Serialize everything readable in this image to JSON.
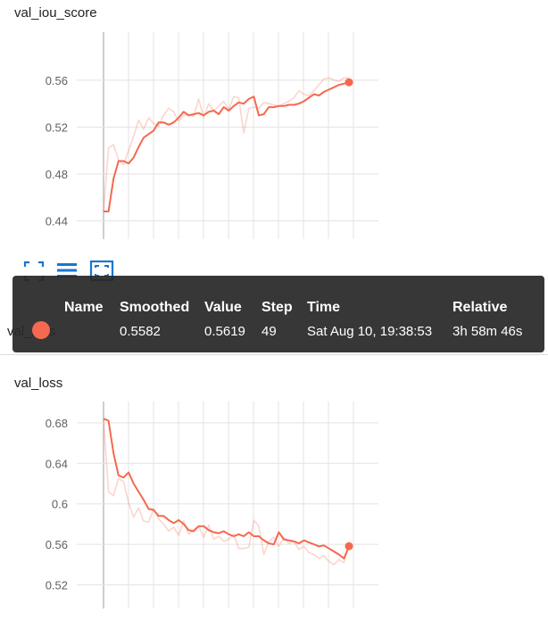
{
  "accent_color": "#f4694f",
  "charts": [
    {
      "title": "val_iou_score"
    },
    {
      "title": "val_loss"
    }
  ],
  "toolbar": {
    "buttons": [
      {
        "name": "fit-domain-icon"
      },
      {
        "name": "data-series-list-icon"
      },
      {
        "name": "expand-chart-icon"
      }
    ]
  },
  "tooltip": {
    "headers": [
      "Name",
      "Smoothed",
      "Value",
      "Step",
      "Time",
      "Relative"
    ],
    "row": {
      "name": "val_loss",
      "smoothed": "0.5582",
      "value": "0.5619",
      "step": "49",
      "time": "Sat Aug 10, 19:38:53",
      "relative": "3h 58m 46s"
    }
  },
  "chart_data": [
    {
      "type": "line",
      "title": "val_iou_score",
      "xlabel": "",
      "ylabel": "",
      "x": [
        0,
        1,
        2,
        3,
        4,
        5,
        6,
        7,
        8,
        9,
        10,
        11,
        12,
        13,
        14,
        15,
        16,
        17,
        18,
        19,
        20,
        21,
        22,
        23,
        24,
        25,
        26,
        27,
        28,
        29,
        30,
        31,
        32,
        33,
        34,
        35,
        36,
        37,
        38,
        39,
        40,
        41,
        42,
        43,
        44,
        45,
        46,
        47,
        48,
        49
      ],
      "yticks": [
        "0.44",
        "0.48",
        "0.52",
        "0.56"
      ],
      "ylim": [
        0.429,
        0.601
      ],
      "series": [
        {
          "role": "raw",
          "values": [
            0.448,
            0.502,
            0.505,
            0.492,
            0.488,
            0.5,
            0.512,
            0.526,
            0.518,
            0.528,
            0.523,
            0.521,
            0.53,
            0.536,
            0.533,
            0.525,
            0.53,
            0.531,
            0.529,
            0.544,
            0.528,
            0.54,
            0.534,
            0.538,
            0.542,
            0.535,
            0.546,
            0.545,
            0.515,
            0.536,
            0.537,
            0.536,
            0.541,
            0.54,
            0.539,
            0.538,
            0.54,
            0.542,
            0.545,
            0.551,
            0.548,
            0.547,
            0.551,
            0.556,
            0.561,
            0.562,
            0.56,
            0.559,
            0.562,
            0.5619
          ]
        },
        {
          "role": "smoothed",
          "values": [
            0.448,
            0.448,
            0.476,
            0.491,
            0.491,
            0.489,
            0.494,
            0.503,
            0.511,
            0.514,
            0.517,
            0.524,
            0.524,
            0.522,
            0.524,
            0.528,
            0.533,
            0.53,
            0.531,
            0.532,
            0.53,
            0.533,
            0.534,
            0.531,
            0.537,
            0.534,
            0.538,
            0.541,
            0.54,
            0.544,
            0.546,
            0.53,
            0.531,
            0.537,
            0.537,
            0.538,
            0.538,
            0.539,
            0.539,
            0.54,
            0.542,
            0.545,
            0.548,
            0.547,
            0.55,
            0.552,
            0.554,
            0.556,
            0.557,
            0.5582
          ]
        }
      ]
    },
    {
      "type": "line",
      "title": "val_loss",
      "xlabel": "",
      "ylabel": "",
      "x": [
        0,
        1,
        2,
        3,
        4,
        5,
        6,
        7,
        8,
        9,
        10,
        11,
        12,
        13,
        14,
        15,
        16,
        17,
        18,
        19,
        20,
        21,
        22,
        23,
        24,
        25,
        26,
        27,
        28,
        29,
        30,
        31,
        32,
        33,
        34,
        35,
        36,
        37,
        38,
        39,
        40,
        41,
        42,
        43,
        44,
        45,
        46,
        47,
        48,
        49
      ],
      "yticks": [
        "0.52",
        "0.56",
        "0.6",
        "0.64",
        "0.68"
      ],
      "ylim": [
        0.502,
        0.701
      ],
      "series": [
        {
          "role": "raw",
          "values": [
            0.684,
            0.612,
            0.608,
            0.625,
            0.622,
            0.601,
            0.587,
            0.596,
            0.583,
            0.582,
            0.595,
            0.585,
            0.58,
            0.573,
            0.577,
            0.569,
            0.583,
            0.57,
            0.575,
            0.578,
            0.567,
            0.579,
            0.565,
            0.568,
            0.563,
            0.565,
            0.57,
            0.556,
            0.556,
            0.557,
            0.584,
            0.578,
            0.55,
            0.563,
            0.567,
            0.558,
            0.567,
            0.561,
            0.563,
            0.555,
            0.558,
            0.552,
            0.55,
            0.546,
            0.549,
            0.543,
            0.54,
            0.545,
            0.542,
            0.5619
          ]
        },
        {
          "role": "smoothed",
          "values": [
            0.684,
            0.682,
            0.65,
            0.628,
            0.626,
            0.631,
            0.62,
            0.612,
            0.604,
            0.595,
            0.594,
            0.588,
            0.588,
            0.584,
            0.581,
            0.584,
            0.58,
            0.574,
            0.573,
            0.578,
            0.578,
            0.574,
            0.572,
            0.571,
            0.573,
            0.57,
            0.568,
            0.57,
            0.568,
            0.572,
            0.568,
            0.568,
            0.564,
            0.561,
            0.56,
            0.572,
            0.565,
            0.564,
            0.563,
            0.561,
            0.564,
            0.562,
            0.56,
            0.558,
            0.559,
            0.556,
            0.553,
            0.55,
            0.546,
            0.5582
          ]
        }
      ]
    }
  ]
}
